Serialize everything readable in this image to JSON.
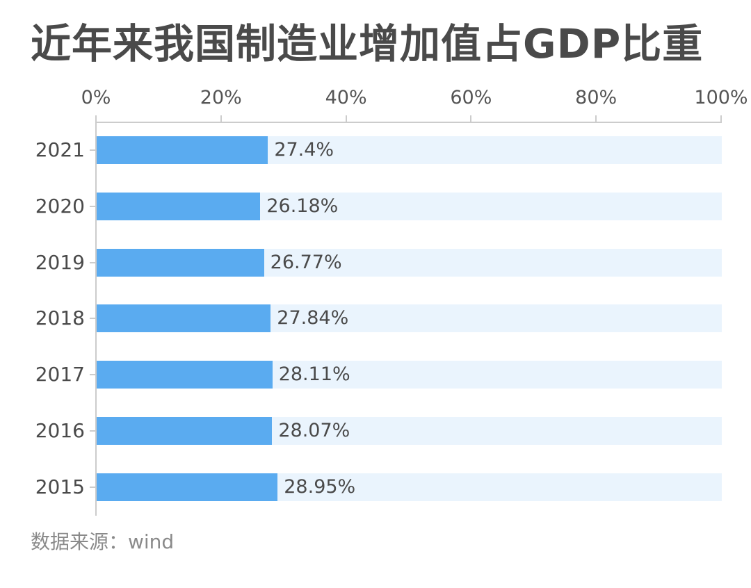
{
  "title": "近年来我国制造业增加值占GDP比重",
  "source": "数据来源：wind",
  "colors": {
    "bar": "#5aabf0",
    "track": "#eaf4fd",
    "axis": "#cccccc",
    "text": "#4a4a4a",
    "source_text": "#8a8a8a"
  },
  "axis": {
    "ticks": [
      "0%",
      "20%",
      "40%",
      "60%",
      "80%",
      "100%"
    ]
  },
  "rows": [
    {
      "year": "2021",
      "value": 27.4,
      "label": "27.4%"
    },
    {
      "year": "2020",
      "value": 26.18,
      "label": "26.18%"
    },
    {
      "year": "2019",
      "value": 26.77,
      "label": "26.77%"
    },
    {
      "year": "2018",
      "value": 27.84,
      "label": "27.84%"
    },
    {
      "year": "2017",
      "value": 28.11,
      "label": "28.11%"
    },
    {
      "year": "2016",
      "value": 28.07,
      "label": "28.07%"
    },
    {
      "year": "2015",
      "value": 28.95,
      "label": "28.95%"
    }
  ],
  "chart_data": {
    "type": "bar",
    "orientation": "horizontal",
    "title": "近年来我国制造业增加值占GDP比重",
    "categories": [
      "2021",
      "2020",
      "2019",
      "2018",
      "2017",
      "2016",
      "2015"
    ],
    "values": [
      27.4,
      26.18,
      26.77,
      27.84,
      28.11,
      28.07,
      28.95
    ],
    "data_labels": [
      "27.4%",
      "26.18%",
      "26.77%",
      "27.84%",
      "28.11%",
      "28.07%",
      "28.95%"
    ],
    "xlabel": "",
    "ylabel": "",
    "xlim": [
      0,
      100
    ],
    "x_ticks": [
      "0%",
      "20%",
      "40%",
      "60%",
      "80%",
      "100%"
    ],
    "x_axis_position": "top",
    "grid": false,
    "legend": null,
    "background_track": true,
    "source": "数据来源：wind"
  }
}
